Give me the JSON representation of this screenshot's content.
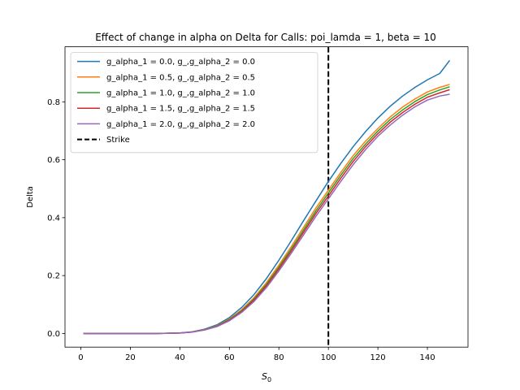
{
  "chart_data": {
    "type": "line",
    "title": "Effect of change in alpha on Delta for Calls: poi_lamda = 1, beta = 10",
    "xlabel_main": "S",
    "xlabel_sub": "0",
    "ylabel": "Delta",
    "xlim": [
      -6.4,
      156.4
    ],
    "ylim": [
      -0.047,
      0.99
    ],
    "xticks": [
      0,
      20,
      40,
      60,
      80,
      100,
      120,
      140
    ],
    "yticks": [
      0.0,
      0.2,
      0.4,
      0.6,
      0.8
    ],
    "xtick_labels": [
      "0",
      "20",
      "40",
      "60",
      "80",
      "100",
      "120",
      "140"
    ],
    "ytick_labels": [
      "0.0",
      "0.2",
      "0.4",
      "0.6",
      "0.8"
    ],
    "legend_position": "upper-left",
    "x": [
      1,
      10,
      20,
      30,
      40,
      45,
      50,
      55,
      60,
      65,
      70,
      75,
      80,
      85,
      90,
      95,
      100,
      105,
      110,
      115,
      120,
      125,
      130,
      135,
      140,
      145,
      149
    ],
    "series": [
      {
        "name": "g_alpha_1 = 0.0, g_,g_alpha_2 = 0.0",
        "color": "#1f77b4",
        "values": [
          0.0,
          0.0,
          0.0,
          0.0,
          0.002,
          0.006,
          0.015,
          0.03,
          0.055,
          0.09,
          0.135,
          0.19,
          0.253,
          0.32,
          0.39,
          0.458,
          0.525,
          0.587,
          0.645,
          0.697,
          0.744,
          0.785,
          0.82,
          0.85,
          0.876,
          0.898,
          0.943
        ]
      },
      {
        "name": "g_alpha_1 = 0.5, g_,g_alpha_2 = 0.5",
        "color": "#ff7f0e",
        "values": [
          0.0,
          0.0,
          0.0,
          0.0,
          0.0018,
          0.0055,
          0.0135,
          0.027,
          0.05,
          0.082,
          0.124,
          0.176,
          0.236,
          0.3,
          0.367,
          0.434,
          0.495,
          0.556,
          0.614,
          0.664,
          0.708,
          0.748,
          0.782,
          0.81,
          0.834,
          0.85,
          0.86
        ]
      },
      {
        "name": "g_alpha_1 = 1.0, g_,g_alpha_2 = 1.0",
        "color": "#2ca02c",
        "values": [
          0.0,
          0.0,
          0.0,
          0.0,
          0.0017,
          0.0052,
          0.013,
          0.026,
          0.048,
          0.079,
          0.12,
          0.17,
          0.229,
          0.292,
          0.358,
          0.424,
          0.485,
          0.546,
          0.604,
          0.654,
          0.699,
          0.739,
          0.772,
          0.801,
          0.825,
          0.841,
          0.852
        ]
      },
      {
        "name": "g_alpha_1 = 1.5, g_,g_alpha_2 = 1.5",
        "color": "#d62728",
        "values": [
          0.0,
          0.0,
          0.0,
          0.0,
          0.0016,
          0.005,
          0.0125,
          0.025,
          0.046,
          0.076,
          0.116,
          0.165,
          0.223,
          0.285,
          0.35,
          0.415,
          0.475,
          0.536,
          0.594,
          0.645,
          0.69,
          0.73,
          0.763,
          0.792,
          0.816,
          0.831,
          0.842
        ]
      },
      {
        "name": "g_alpha_1 = 2.0, g_,g_alpha_2 = 2.0",
        "color": "#9467bd",
        "values": [
          0.0,
          0.0,
          0.0,
          0.0,
          0.0015,
          0.0047,
          0.012,
          0.024,
          0.044,
          0.073,
          0.111,
          0.159,
          0.216,
          0.277,
          0.341,
          0.405,
          0.465,
          0.525,
          0.583,
          0.635,
          0.681,
          0.72,
          0.754,
          0.783,
          0.806,
          0.82,
          0.826
        ]
      }
    ],
    "strike": {
      "name": "Strike",
      "x": 100,
      "color": "#000000",
      "style": "dashed"
    }
  }
}
